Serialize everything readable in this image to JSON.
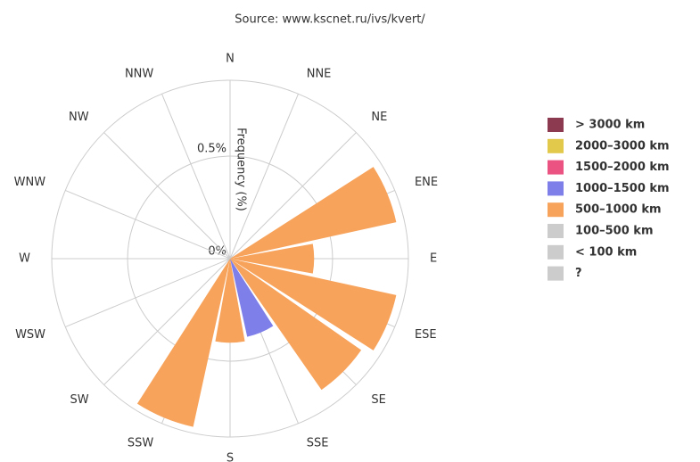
{
  "chart_data": {
    "type": "wind-rose",
    "title": "Source: www.kscnet.ru/ivs/kvert/",
    "radial_axis_title": "Frequency (%)",
    "categories": [
      "N",
      "NNE",
      "NE",
      "ENE",
      "E",
      "ESE",
      "SE",
      "SSE",
      "S",
      "SSW",
      "SW",
      "WSW",
      "W",
      "WNW",
      "NW",
      "NNW"
    ],
    "rlim": [
      0,
      0.87
    ],
    "rticks": [
      {
        "value": 0,
        "label": "0%"
      },
      {
        "value": 0.5,
        "label": "0.5%"
      }
    ],
    "grid": true,
    "stacked": true,
    "legend": "right",
    "series": [
      {
        "name": "> 3000 km",
        "color": "#8b3a50",
        "visible": true,
        "values": [
          null,
          null,
          null,
          null,
          null,
          null,
          null,
          null,
          null,
          null,
          null,
          null,
          null,
          null,
          null,
          null
        ]
      },
      {
        "name": "2000–3000 km",
        "color": "#e2c94c",
        "visible": true,
        "values": [
          null,
          null,
          null,
          null,
          null,
          null,
          null,
          null,
          null,
          null,
          null,
          null,
          null,
          null,
          null,
          null
        ]
      },
      {
        "name": "1500–2000 km",
        "color": "#ea5382",
        "visible": true,
        "values": [
          null,
          null,
          null,
          null,
          null,
          null,
          null,
          null,
          null,
          null,
          null,
          null,
          null,
          null,
          null,
          null
        ]
      },
      {
        "name": "1000–1500 km",
        "color": "#7f7fea",
        "visible": true,
        "values": [
          null,
          null,
          null,
          null,
          null,
          null,
          null,
          0.39,
          null,
          null,
          null,
          null,
          null,
          null,
          null,
          null
        ]
      },
      {
        "name": "500–1000 km",
        "color": "#f7a35c",
        "visible": true,
        "values": [
          null,
          null,
          null,
          0.83,
          0.41,
          0.83,
          0.78,
          null,
          0.41,
          0.84,
          null,
          null,
          null,
          null,
          null,
          null
        ]
      },
      {
        "name": "100–500 km",
        "color": "#cccccc",
        "visible": false,
        "values": [
          null,
          null,
          null,
          null,
          null,
          null,
          null,
          null,
          null,
          null,
          null,
          null,
          null,
          null,
          null,
          null
        ]
      },
      {
        "name": "< 100 km",
        "color": "#cccccc",
        "visible": false,
        "values": [
          null,
          null,
          null,
          null,
          null,
          null,
          null,
          null,
          null,
          null,
          null,
          null,
          null,
          null,
          null,
          null
        ]
      },
      {
        "name": "?",
        "color": "#cccccc",
        "visible": false,
        "values": [
          null,
          null,
          null,
          null,
          null,
          null,
          null,
          null,
          null,
          null,
          null,
          null,
          null,
          null,
          null,
          null
        ]
      }
    ]
  }
}
